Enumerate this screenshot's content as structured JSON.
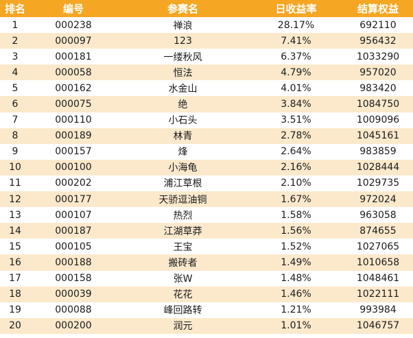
{
  "columns": {
    "rank": "排名",
    "code": "编号",
    "name": "参赛名",
    "daily_return": "日收益率",
    "equity": "结算权益"
  },
  "rows": [
    {
      "rank": "1",
      "code": "000238",
      "name": "禅浪",
      "daily_return": "28.17%",
      "equity": "692110"
    },
    {
      "rank": "2",
      "code": "000097",
      "name": "123",
      "daily_return": "7.41%",
      "equity": "956432"
    },
    {
      "rank": "3",
      "code": "000181",
      "name": "一缕秋风",
      "daily_return": "6.37%",
      "equity": "1033290"
    },
    {
      "rank": "4",
      "code": "000058",
      "name": "恒法",
      "daily_return": "4.79%",
      "equity": "957020"
    },
    {
      "rank": "5",
      "code": "000162",
      "name": "水金山",
      "daily_return": "4.01%",
      "equity": "983420"
    },
    {
      "rank": "6",
      "code": "000075",
      "name": "绝",
      "daily_return": "3.84%",
      "equity": "1084750"
    },
    {
      "rank": "7",
      "code": "000110",
      "name": "小石头",
      "daily_return": "3.51%",
      "equity": "1009096"
    },
    {
      "rank": "8",
      "code": "000189",
      "name": "林青",
      "daily_return": "2.78%",
      "equity": "1045161"
    },
    {
      "rank": "9",
      "code": "000157",
      "name": "烽",
      "daily_return": "2.64%",
      "equity": "983859"
    },
    {
      "rank": "10",
      "code": "000100",
      "name": "小海龟",
      "daily_return": "2.16%",
      "equity": "1028444"
    },
    {
      "rank": "11",
      "code": "000202",
      "name": "浦江草根",
      "daily_return": "2.10%",
      "equity": "1029735"
    },
    {
      "rank": "12",
      "code": "000177",
      "name": "天骄逗油铜",
      "daily_return": "1.67%",
      "equity": "972024"
    },
    {
      "rank": "13",
      "code": "000107",
      "name": "热烈",
      "daily_return": "1.58%",
      "equity": "963058"
    },
    {
      "rank": "14",
      "code": "000187",
      "name": "江湖草莽",
      "daily_return": "1.56%",
      "equity": "874655"
    },
    {
      "rank": "15",
      "code": "000105",
      "name": "王宝",
      "daily_return": "1.52%",
      "equity": "1027065"
    },
    {
      "rank": "16",
      "code": "000188",
      "name": "搬砖者",
      "daily_return": "1.49%",
      "equity": "1010658"
    },
    {
      "rank": "17",
      "code": "000158",
      "name": "张W",
      "daily_return": "1.48%",
      "equity": "1048461"
    },
    {
      "rank": "18",
      "code": "000039",
      "name": "花花",
      "daily_return": "1.46%",
      "equity": "1022111"
    },
    {
      "rank": "19",
      "code": "000088",
      "name": "峰回路转",
      "daily_return": "1.21%",
      "equity": "993984"
    },
    {
      "rank": "20",
      "code": "000200",
      "name": "润元",
      "daily_return": "1.01%",
      "equity": "1046757"
    }
  ],
  "colors": {
    "header_bg": "#f5a623",
    "header_text": "#ffffff",
    "stripe_bg": "#fce9cc"
  }
}
